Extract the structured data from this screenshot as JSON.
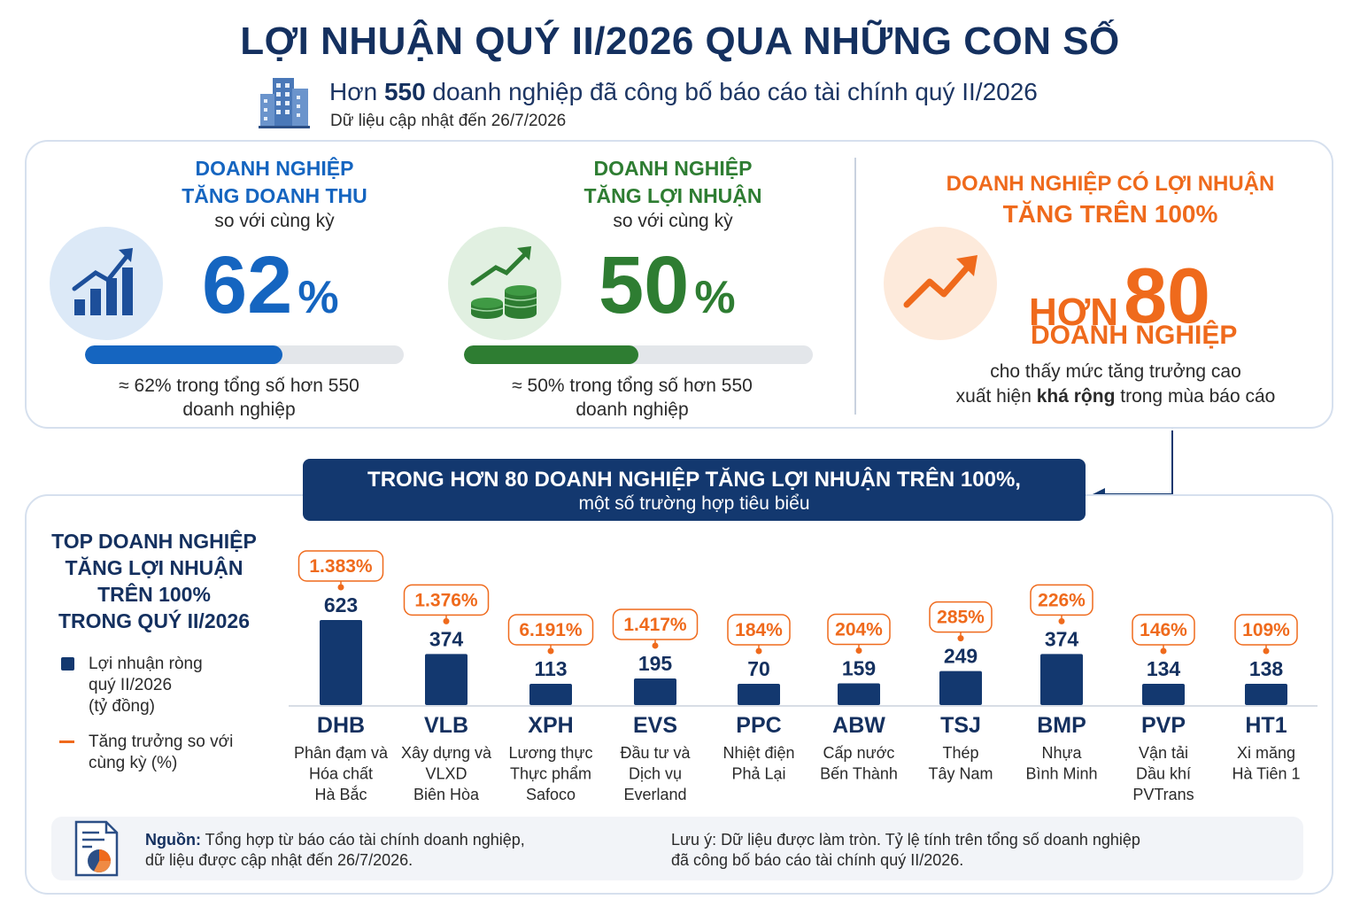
{
  "header": {
    "title": "LỢI NHUẬN QUÝ II/2026 QUA NHỮNG CON SỐ",
    "subtitle_prefix": "Hơn ",
    "subtitle_number": "550",
    "subtitle_rest": " doanh nghiệp đã công bố báo cáo tài chính quý II/2026",
    "updated": "Dữ liệu cập nhật đến 26/7/2026",
    "icon": "buildings-icon"
  },
  "kpis": [
    {
      "head_line1": "DOANH NGHIỆP",
      "head_line2": "TĂNG DOANH THU",
      "sub": "so với cùng kỳ",
      "value": "62",
      "unit": "%",
      "share": 0.62,
      "note_line1": "≈ 62% trong tổng số hơn 550",
      "note_line2": "doanh nghiệp",
      "color": "#1565c0",
      "icon": "rising-bar-chart-icon"
    },
    {
      "head_line1": "DOANH NGHIỆP",
      "head_line2": "TĂNG LỢI NHUẬN",
      "sub": "so với cùng kỳ",
      "value": "50",
      "unit": "%",
      "share": 0.5,
      "note_line1": "≈ 50% trong tổng số hơn 550",
      "note_line2": "doanh nghiệp",
      "color": "#2e7d32",
      "icon": "coins-growth-icon"
    }
  ],
  "highlight": {
    "head_line1": "DOANH NGHIỆP CÓ LỢI NHUẬN",
    "head_line2": "TĂNG TRÊN 100%",
    "prefix": "HƠN",
    "number": "80",
    "unit_line": "DOANH NGHIỆP",
    "note_line1": "cho thấy mức tăng trưởng cao",
    "note_pre": "xuất hiện ",
    "note_bold": "khá rộng",
    "note_post": " trong mùa báo cáo",
    "color": "#ef6a1c",
    "icon": "trend-up-icon"
  },
  "banner": {
    "line1": "TRONG HƠN 80 DOANH NGHIỆP TĂNG LỢI NHUẬN TRÊN 100%,",
    "line2": "một số trường hợp tiêu biểu"
  },
  "top": {
    "title_lines": [
      "TOP DOANH NGHIỆP",
      "TĂNG LỢI NHUẬN",
      "TRÊN 100%",
      "TRONG QUÝ II/2026"
    ],
    "legend_profit_lines": [
      "Lợi nhuận ròng",
      "quý II/2026",
      "(tỷ đồng)"
    ],
    "legend_growth_lines": [
      "Tăng trưởng so với",
      "cùng kỳ (%)"
    ]
  },
  "chart_data": {
    "type": "bar",
    "categories": [
      "DHB",
      "VLB",
      "XPH",
      "EVS",
      "PPC",
      "ABW",
      "TSJ",
      "BMP",
      "PVP",
      "HT1"
    ],
    "descriptions": [
      [
        "Phân đạm và",
        "Hóa chất",
        "Hà Bắc"
      ],
      [
        "Xây dựng và",
        "VLXD",
        "Biên Hòa"
      ],
      [
        "Lương thực",
        "Thực phẩm",
        "Safoco"
      ],
      [
        "Đầu tư và",
        "Dịch vụ",
        "Everland"
      ],
      [
        "Nhiệt điện",
        "Phả Lại"
      ],
      [
        "Cấp nước",
        "Bến Thành"
      ],
      [
        "Thép",
        "Tây Nam"
      ],
      [
        "Nhựa",
        "Bình Minh"
      ],
      [
        "Vận tải",
        "Dầu khí",
        "PVTrans"
      ],
      [
        "Xi măng",
        "Hà Tiên 1"
      ]
    ],
    "series": [
      {
        "name": "Lợi nhuận ròng quý II/2026 (tỷ đồng)",
        "values": [
          623,
          374,
          113,
          195,
          70,
          159,
          249,
          374,
          134,
          138
        ],
        "labels": [
          "623",
          "374",
          "113",
          "195",
          "70",
          "159",
          "249",
          "374",
          "134",
          "138"
        ],
        "color": "#13386f"
      },
      {
        "name": "Tăng trưởng so với cùng kỳ (%)",
        "values": [
          1383,
          1376,
          6191,
          1417,
          184,
          204,
          285,
          226,
          146,
          109
        ],
        "labels": [
          "1.383%",
          "1.376%",
          "6.191%",
          "1.417%",
          "184%",
          "204%",
          "285%",
          "226%",
          "146%",
          "109%"
        ],
        "color": "#ef6a1c"
      }
    ],
    "legend": "left"
  },
  "footer": {
    "source_bold": "Nguồn:",
    "source_line1": " Tổng hợp từ báo cáo tài chính doanh nghiệp,",
    "source_line2": "dữ liệu được cập nhật đến 26/7/2026.",
    "note_line1": "Lưu ý: Dữ liệu được làm tròn.  Tỷ lệ tính trên tổng số doanh nghiệp",
    "note_line2": "đã công bố báo cáo tài chính quý II/2026.",
    "icon": "report-document-icon"
  }
}
